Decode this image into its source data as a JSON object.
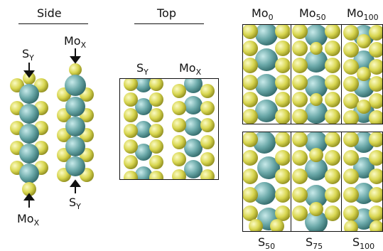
{
  "headers": {
    "side": "Side",
    "top": "Top"
  },
  "side": {
    "left_top_label": {
      "base": "S",
      "sub": "Y"
    },
    "left_bottom_label": {
      "base": "Mo",
      "sub": "X"
    },
    "right_top_label": {
      "base": "Mo",
      "sub": "X"
    },
    "right_bottom_label": {
      "base": "S",
      "sub": "Y"
    }
  },
  "top": {
    "col1_label": {
      "base": "S",
      "sub": "Y"
    },
    "col2_label": {
      "base": "Mo",
      "sub": "X"
    }
  },
  "grid": {
    "top_row": [
      {
        "base": "Mo",
        "sub": "0"
      },
      {
        "base": "Mo",
        "sub": "50"
      },
      {
        "base": "Mo",
        "sub": "100"
      }
    ],
    "bottom_row": [
      {
        "base": "S",
        "sub": "50"
      },
      {
        "base": "S",
        "sub": "75"
      },
      {
        "base": "S",
        "sub": "100"
      }
    ]
  },
  "colors": {
    "sulfur": "#d8d650",
    "molybdenum": "#6aa8a8",
    "outline": "#111111"
  }
}
